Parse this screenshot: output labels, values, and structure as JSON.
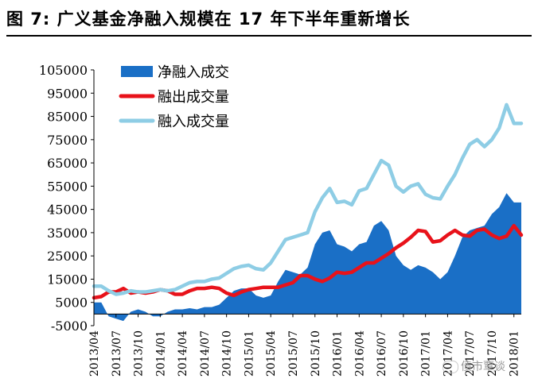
{
  "title": "图 7:  广义基金净融入规模在 17 年下半年重新增长",
  "watermark": "债市覃谈",
  "colors": {
    "net": "#1a6fc6",
    "out": "#e8121a",
    "in": "#8ecde5"
  },
  "chart_data": {
    "type": "area",
    "ylim": [
      -5000,
      105000
    ],
    "yticks": [
      -5000,
      5000,
      15000,
      25000,
      35000,
      45000,
      55000,
      65000,
      75000,
      85000,
      95000,
      105000
    ],
    "x_labels": [
      "2013/04",
      "2013/07",
      "2013/10",
      "2014/01",
      "2014/04",
      "2014/07",
      "2014/10",
      "2015/01",
      "2015/04",
      "2015/07",
      "2015/10",
      "2016/01",
      "2016/04",
      "2016/07",
      "2016/10",
      "2017/01",
      "2017/04",
      "2017/07",
      "2017/10",
      "2018/01"
    ],
    "x": [
      "2013/04",
      "2013/05",
      "2013/06",
      "2013/07",
      "2013/08",
      "2013/09",
      "2013/10",
      "2013/11",
      "2013/12",
      "2014/01",
      "2014/02",
      "2014/03",
      "2014/04",
      "2014/05",
      "2014/06",
      "2014/07",
      "2014/08",
      "2014/09",
      "2014/10",
      "2014/11",
      "2014/12",
      "2015/01",
      "2015/02",
      "2015/03",
      "2015/04",
      "2015/05",
      "2015/06",
      "2015/07",
      "2015/08",
      "2015/09",
      "2015/10",
      "2015/11",
      "2015/12",
      "2016/01",
      "2016/02",
      "2016/03",
      "2016/04",
      "2016/05",
      "2016/06",
      "2016/07",
      "2016/08",
      "2016/09",
      "2016/10",
      "2016/11",
      "2016/12",
      "2017/01",
      "2017/02",
      "2017/03",
      "2017/04",
      "2017/05",
      "2017/06",
      "2017/07",
      "2017/08",
      "2017/09",
      "2017/10",
      "2017/11",
      "2017/12",
      "2018/01",
      "2018/02"
    ],
    "series": [
      {
        "name": "净融入成交",
        "kind": "area",
        "color": "#1a6fc6",
        "values": [
          5000,
          5000,
          -1000,
          -2000,
          -3000,
          1000,
          2000,
          1000,
          -1000,
          -1000,
          1000,
          2000,
          2000,
          2500,
          2000,
          3000,
          3000,
          4000,
          7000,
          10000,
          11000,
          11000,
          8000,
          7000,
          8000,
          14000,
          19000,
          18000,
          17000,
          20000,
          30000,
          35000,
          36000,
          30000,
          29000,
          27000,
          30000,
          31000,
          38000,
          40000,
          36000,
          25000,
          21000,
          19000,
          21000,
          20000,
          18000,
          15000,
          18000,
          25000,
          33000,
          36000,
          37000,
          38000,
          43000,
          46000,
          52000,
          48000,
          48000
        ]
      },
      {
        "name": "融出成交量",
        "kind": "line",
        "color": "#e8121a",
        "values": [
          7000,
          7500,
          9500,
          9500,
          11000,
          9000,
          9500,
          9000,
          9500,
          10500,
          10000,
          8500,
          8500,
          10000,
          11000,
          11000,
          11500,
          11000,
          9000,
          8000,
          9500,
          10500,
          11000,
          11500,
          11500,
          11500,
          12500,
          13500,
          16500,
          16500,
          15000,
          14000,
          15500,
          18000,
          17500,
          18000,
          20000,
          22000,
          22000,
          24000,
          26000,
          28500,
          30500,
          33000,
          36000,
          35500,
          31000,
          31500,
          34000,
          36000,
          34000,
          33500,
          36000,
          36500,
          34000,
          32500,
          33500,
          38000,
          34000
        ]
      },
      {
        "name": "融入成交量",
        "kind": "line",
        "color": "#8ecde5",
        "values": [
          12000,
          12000,
          10000,
          8500,
          9000,
          10000,
          9500,
          9500,
          10000,
          10500,
          10000,
          10500,
          12000,
          13500,
          14000,
          14000,
          15000,
          15500,
          17500,
          19500,
          20500,
          21000,
          19500,
          19000,
          22000,
          27000,
          32000,
          33000,
          34000,
          35000,
          44000,
          50000,
          54000,
          48000,
          48500,
          47000,
          53000,
          54000,
          60000,
          66000,
          64000,
          55000,
          52500,
          55000,
          56000,
          51500,
          50000,
          49500,
          55000,
          60000,
          67000,
          73000,
          75000,
          72000,
          75000,
          80000,
          90000,
          82000,
          82000
        ]
      }
    ],
    "legend_position": "top-left"
  }
}
